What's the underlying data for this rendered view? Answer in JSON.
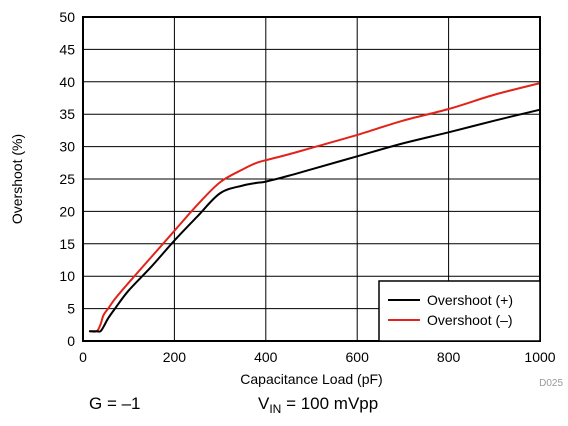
{
  "chart_data": {
    "type": "line",
    "title": "",
    "xlabel": "Capacitance Load (pF)",
    "ylabel": "Overshoot (%)",
    "xlim": [
      0,
      1000
    ],
    "ylim": [
      0,
      50
    ],
    "xticks": [
      0,
      200,
      400,
      600,
      800,
      1000
    ],
    "yticks": [
      0,
      5,
      10,
      15,
      20,
      25,
      30,
      35,
      40,
      45,
      50
    ],
    "grid": true,
    "legend_position": "bottom-right",
    "series": [
      {
        "name": "Overshoot (+)",
        "color": "#000000",
        "x": [
          15,
          30,
          38,
          45,
          55,
          70,
          100,
          150,
          200,
          250,
          300,
          350,
          380,
          400,
          450,
          500,
          600,
          700,
          800,
          900,
          1000
        ],
        "y": [
          1.5,
          1.5,
          1.5,
          2.2,
          3.5,
          5.0,
          7.8,
          11.5,
          15.5,
          19.2,
          22.8,
          24.0,
          24.4,
          24.6,
          25.5,
          26.5,
          28.5,
          30.5,
          32.2,
          34.0,
          35.7
        ]
      },
      {
        "name": "Overshoot (–)",
        "color": "#e2231a",
        "x": [
          15,
          30,
          38,
          45,
          55,
          70,
          100,
          150,
          200,
          250,
          300,
          350,
          380,
          400,
          450,
          500,
          600,
          700,
          800,
          900,
          1000
        ],
        "y": [
          1.5,
          1.5,
          2.5,
          4.0,
          5.0,
          6.5,
          9.0,
          13.0,
          17.0,
          21.0,
          24.5,
          26.5,
          27.5,
          27.9,
          28.8,
          29.8,
          31.8,
          34.0,
          35.8,
          38.0,
          39.8
        ]
      }
    ],
    "figure_id": "D025"
  },
  "captions": {
    "gain": "G = –1",
    "vin_symbol": "V",
    "vin_subscript": "IN",
    "vin_value": " = 100 mVpp"
  }
}
